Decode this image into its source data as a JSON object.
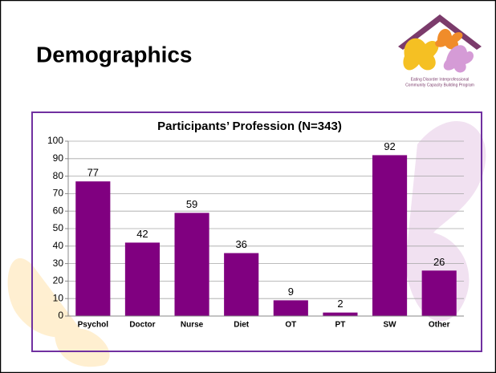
{
  "header": {
    "title": "Demographics",
    "logo_text": [
      "Eating Disorder Interprofessional",
      "Community Capacity Building Program"
    ]
  },
  "chart_data": {
    "type": "bar",
    "title": "Participants’ Profession (N=343)",
    "categories": [
      "Psychol",
      "Doctor",
      "Nurse",
      "Diet",
      "OT",
      "PT",
      "SW",
      "Other"
    ],
    "values": [
      77,
      42,
      59,
      36,
      9,
      2,
      92,
      26
    ],
    "color": "#800080",
    "ylim": [
      0,
      100
    ],
    "yticks": [
      0,
      10,
      20,
      30,
      40,
      50,
      60,
      70,
      80,
      90,
      100
    ],
    "grid": true
  }
}
